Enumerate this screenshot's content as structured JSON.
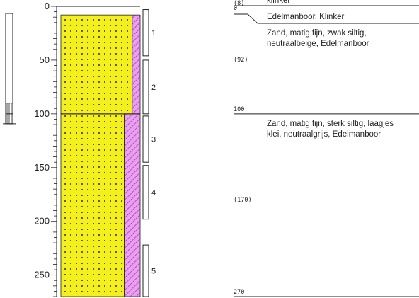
{
  "colors": {
    "sand": "#f3f01e",
    "hatch": "#e9a0ef",
    "hatch_stroke": "#9a1ea8",
    "dot": "#222222",
    "line": "#222222"
  },
  "depth_axis": {
    "max": 270,
    "ticks": [
      {
        "value": 0,
        "label": "0"
      },
      {
        "value": 50,
        "label": "50"
      },
      {
        "value": 100,
        "label": "100"
      },
      {
        "value": 150,
        "label": "150"
      },
      {
        "value": 200,
        "label": "200"
      },
      {
        "value": 250,
        "label": "250"
      }
    ]
  },
  "borehole_pipe": {
    "top": 0,
    "bottom": 100,
    "filter_top": 90,
    "filter_bottom": 100
  },
  "layers": [
    {
      "top": 0,
      "bottom": 8,
      "lithology": "klinker",
      "depth_label": "(8)",
      "description": [
        "klinker"
      ]
    },
    {
      "top": 8,
      "bottom": 100,
      "lithology": "zand-zwak-siltig",
      "hatch_share": 0.1,
      "depth_label": "(92)",
      "top_description": [
        "Edelmanboor, Klinker"
      ],
      "description": [
        "Zand, matig fijn, zwak siltig,",
        "neutraalbeige, Edelmanboor"
      ]
    },
    {
      "top": 100,
      "bottom": 270,
      "lithology": "zand-sterk-siltig",
      "hatch_share": 0.2,
      "top_label": "100",
      "depth_label": "(170)",
      "bottom_label": "270",
      "description": [
        "Zand, matig fijn, sterk siltig, laagjes",
        "klei, neutraalgrijs, Edelmanboor"
      ]
    }
  ],
  "samples": [
    {
      "label": "1",
      "top": 3,
      "bottom": 46
    },
    {
      "label": "2",
      "top": 50,
      "bottom": 100
    },
    {
      "label": "3",
      "top": 102,
      "bottom": 145
    },
    {
      "label": "4",
      "top": 148,
      "bottom": 198
    },
    {
      "label": "5",
      "top": 222,
      "bottom": 270
    }
  ]
}
